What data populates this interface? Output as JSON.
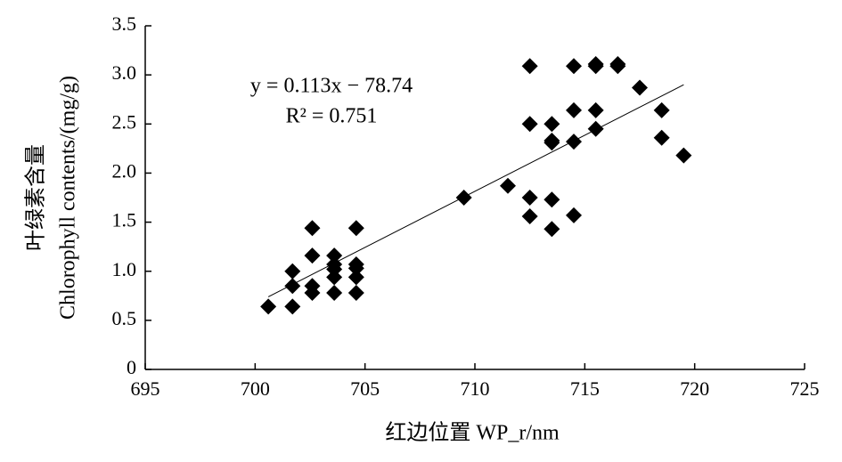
{
  "chart_data": {
    "type": "scatter",
    "x_label": "红边位置 WP_r/nm",
    "y_label": [
      "叶绿素含量",
      "Chlorophyll contents/(mg/g)"
    ],
    "annotations": [
      "y = 0.113x − 78.74",
      "R² = 0.751"
    ],
    "xlim": [
      695,
      725
    ],
    "xticks": [
      695,
      700,
      705,
      710,
      715,
      720,
      725
    ],
    "ylim": [
      0,
      3.5
    ],
    "yticks": [
      0,
      0.5,
      {
        "value": 1,
        "label": "1.0"
      },
      1.5,
      {
        "value": 2,
        "label": "2.0"
      },
      2.5,
      {
        "value": 3,
        "label": "3.0"
      },
      3.5
    ],
    "grid": false,
    "color": "#000000",
    "x": [
      700.6,
      701.7,
      701.7,
      701.7,
      702.6,
      702.6,
      702.6,
      702.6,
      703.6,
      703.6,
      703.6,
      703.6,
      703.6,
      704.6,
      704.6,
      704.6,
      704.6,
      704.6,
      709.5,
      711.5,
      712.5,
      712.5,
      712.5,
      712.5,
      713.5,
      713.5,
      713.5,
      713.5,
      713.5,
      714.5,
      714.5,
      714.5,
      714.5,
      715.5,
      715.5,
      715.5,
      715.5,
      716.5,
      716.5,
      717.5,
      718.5,
      718.5,
      719.5
    ],
    "y": [
      0.64,
      1.0,
      0.85,
      0.64,
      1.44,
      1.16,
      0.85,
      0.78,
      1.16,
      1.07,
      1.02,
      0.94,
      0.78,
      1.44,
      1.07,
      1.03,
      0.94,
      0.78,
      1.75,
      1.87,
      3.09,
      2.5,
      1.75,
      1.56,
      2.5,
      2.33,
      2.31,
      1.73,
      1.43,
      3.09,
      2.64,
      2.32,
      1.57,
      3.11,
      3.09,
      2.64,
      2.45,
      3.11,
      3.09,
      2.87,
      2.64,
      2.36,
      2.18
    ],
    "trendline": {
      "x": [
        700.6,
        719.5
      ],
      "y": [
        0.74,
        2.9
      ]
    }
  }
}
